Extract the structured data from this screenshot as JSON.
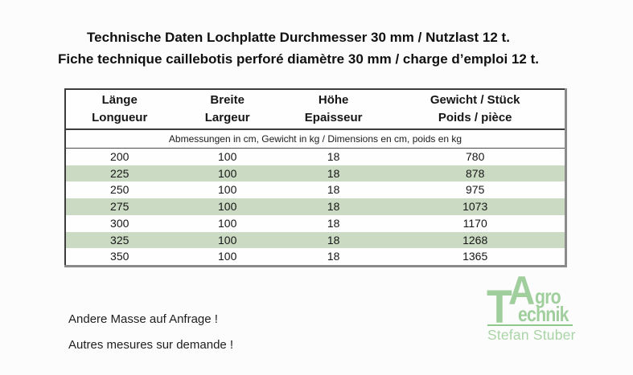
{
  "page": {
    "title_de": "Technische Daten Lochplatte Durchmesser 30 mm / Nutzlast 12 t.",
    "title_fr": "Fiche technique caillebotis perforé diamètre 30 mm / charge d’emploi 12 t."
  },
  "table": {
    "columns": [
      {
        "de": "Länge",
        "fr": "Longueur"
      },
      {
        "de": "Breite",
        "fr": "Largeur"
      },
      {
        "de": "Höhe",
        "fr": "Epaisseur"
      },
      {
        "de": "Gewicht / Stück",
        "fr": "Poids / pièce"
      }
    ],
    "units_note": "Abmessungen in cm, Gewicht in kg / Dimensions en cm, poids en kg",
    "rows": [
      [
        "200",
        "100",
        "18",
        "780"
      ],
      [
        "225",
        "100",
        "18",
        "878"
      ],
      [
        "250",
        "100",
        "18",
        "975"
      ],
      [
        "275",
        "100",
        "18",
        "1073"
      ],
      [
        "300",
        "100",
        "18",
        "1170"
      ],
      [
        "325",
        "100",
        "18",
        "1268"
      ],
      [
        "350",
        "100",
        "18",
        "1365"
      ]
    ]
  },
  "notes": {
    "de": "Andere Masse auf Anfrage !",
    "fr": "Autres mesures sur demande !"
  },
  "logo": {
    "letter_a": "A",
    "letter_t": "T",
    "suffix_a": "gro",
    "suffix_t": "echnik",
    "owner": "Stefan Stuber"
  },
  "colors": {
    "row_alt_green": "#cbdac3",
    "logo_green": "#a0cf9d",
    "logo_line_green": "#90c78c",
    "logo_light_green": "#a9d4a5"
  }
}
